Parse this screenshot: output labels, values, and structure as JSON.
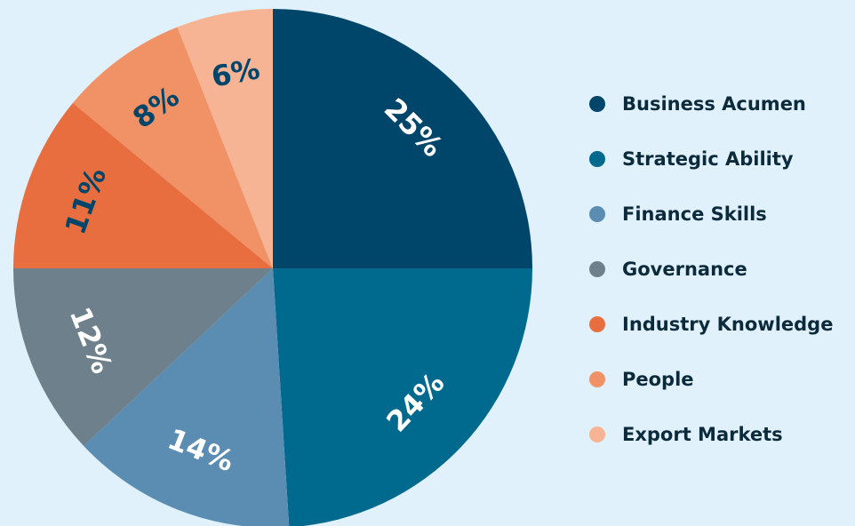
{
  "chart_data": {
    "type": "pie",
    "categories": [
      "Business Acumen",
      "Strategic Ability",
      "Finance Skills",
      "Governance",
      "Industry Knowledge",
      "People",
      "Export Markets"
    ],
    "values": [
      25,
      24,
      14,
      12,
      11,
      8,
      6
    ],
    "value_labels": [
      "25%",
      "24%",
      "14%",
      "12%",
      "11%",
      "8%",
      "6%"
    ],
    "colors": [
      "#00466b",
      "#006a8e",
      "#5b8db3",
      "#6d808b",
      "#e86e3f",
      "#f09166",
      "#f6b494"
    ],
    "label_colors": [
      "#ffffff",
      "#ffffff",
      "#ffffff",
      "#ffffff",
      "#00466b",
      "#00466b",
      "#00466b"
    ],
    "legend": "right"
  }
}
